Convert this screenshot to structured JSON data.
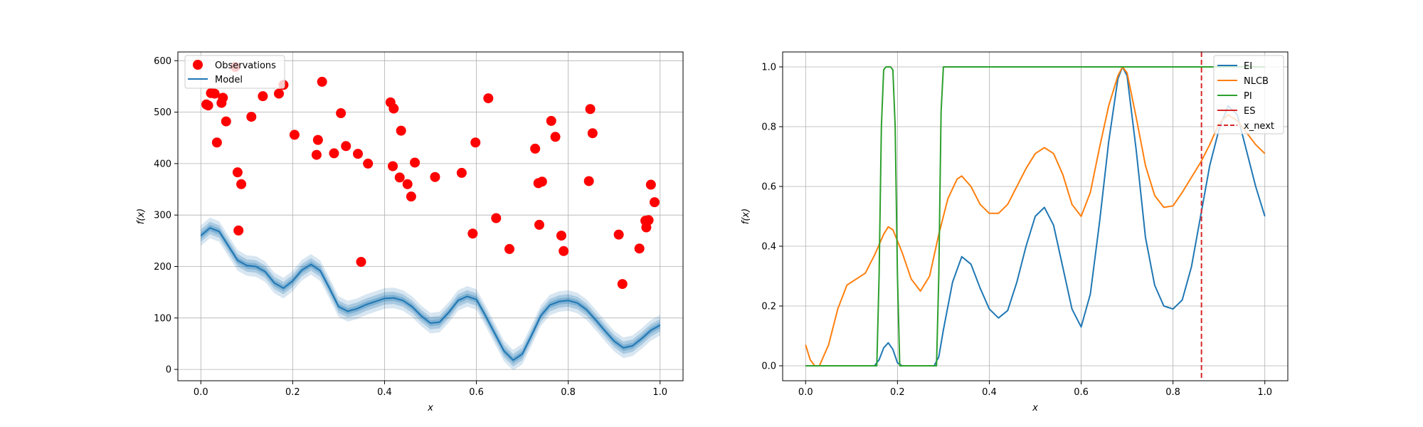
{
  "chart_data": [
    {
      "type": "scatter",
      "title": "",
      "xlabel": "x",
      "ylabel": "f(x)",
      "xlim": [
        -0.05,
        1.05
      ],
      "ylim": [
        -22,
        617
      ],
      "xticks": [
        0.0,
        0.2,
        0.4,
        0.6,
        0.8,
        1.0
      ],
      "xtick_labels": [
        "0.0",
        "0.2",
        "0.4",
        "0.6",
        "0.8",
        "1.0"
      ],
      "yticks": [
        0,
        100,
        200,
        300,
        400,
        500,
        600
      ],
      "ytick_labels": [
        "0",
        "100",
        "200",
        "300",
        "400",
        "500",
        "600"
      ],
      "grid": true,
      "legend": {
        "placement": "upper-left",
        "entries": [
          "Observations",
          "Model"
        ]
      },
      "series": [
        {
          "name": "Observations",
          "kind": "scatter",
          "color": "#ff0000",
          "points": [
            [
              0.012,
              515
            ],
            [
              0.016,
              513
            ],
            [
              0.022,
              537
            ],
            [
              0.03,
              536
            ],
            [
              0.035,
              441
            ],
            [
              0.045,
              518
            ],
            [
              0.048,
              528
            ],
            [
              0.055,
              482
            ],
            [
              0.075,
              588
            ],
            [
              0.08,
              383
            ],
            [
              0.082,
              270
            ],
            [
              0.088,
              360
            ],
            [
              0.11,
              491
            ],
            [
              0.135,
              531
            ],
            [
              0.17,
              536
            ],
            [
              0.18,
              553
            ],
            [
              0.204,
              456
            ],
            [
              0.252,
              417
            ],
            [
              0.255,
              446
            ],
            [
              0.264,
              559
            ],
            [
              0.29,
              420
            ],
            [
              0.305,
              498
            ],
            [
              0.316,
              434
            ],
            [
              0.342,
              419
            ],
            [
              0.349,
              209
            ],
            [
              0.364,
              400
            ],
            [
              0.413,
              519
            ],
            [
              0.418,
              395
            ],
            [
              0.42,
              507
            ],
            [
              0.433,
              373
            ],
            [
              0.436,
              464
            ],
            [
              0.45,
              360
            ],
            [
              0.458,
              336
            ],
            [
              0.466,
              402
            ],
            [
              0.51,
              374
            ],
            [
              0.568,
              382
            ],
            [
              0.592,
              264
            ],
            [
              0.598,
              441
            ],
            [
              0.626,
              527
            ],
            [
              0.643,
              294
            ],
            [
              0.672,
              234
            ],
            [
              0.728,
              429
            ],
            [
              0.735,
              362
            ],
            [
              0.737,
              281
            ],
            [
              0.743,
              365
            ],
            [
              0.763,
              483
            ],
            [
              0.772,
              452
            ],
            [
              0.785,
              260
            ],
            [
              0.79,
              230
            ],
            [
              0.845,
              366
            ],
            [
              0.848,
              506
            ],
            [
              0.853,
              459
            ],
            [
              0.91,
              262
            ],
            [
              0.918,
              166
            ],
            [
              0.955,
              235
            ],
            [
              0.968,
              289
            ],
            [
              0.97,
              276
            ],
            [
              0.975,
              290
            ],
            [
              0.98,
              359
            ],
            [
              0.988,
              325
            ]
          ]
        },
        {
          "name": "Model",
          "kind": "line",
          "color": "#1f77b4",
          "x": [
            0.0,
            0.02,
            0.04,
            0.06,
            0.08,
            0.1,
            0.12,
            0.14,
            0.16,
            0.18,
            0.2,
            0.22,
            0.24,
            0.26,
            0.28,
            0.3,
            0.32,
            0.34,
            0.36,
            0.38,
            0.4,
            0.42,
            0.44,
            0.46,
            0.48,
            0.5,
            0.52,
            0.54,
            0.56,
            0.58,
            0.6,
            0.62,
            0.64,
            0.66,
            0.68,
            0.7,
            0.72,
            0.74,
            0.76,
            0.78,
            0.8,
            0.82,
            0.84,
            0.86,
            0.88,
            0.9,
            0.92,
            0.94,
            0.96,
            0.98,
            1.0
          ],
          "y": [
            260,
            275,
            268,
            240,
            212,
            202,
            200,
            190,
            168,
            158,
            172,
            193,
            204,
            192,
            158,
            122,
            113,
            118,
            126,
            132,
            138,
            139,
            134,
            122,
            104,
            90,
            92,
            111,
            134,
            142,
            136,
            104,
            70,
            36,
            18,
            30,
            66,
            104,
            125,
            132,
            134,
            129,
            116,
            96,
            75,
            55,
            42,
            46,
            60,
            76,
            86
          ],
          "band_halfwidth": 10
        }
      ]
    },
    {
      "type": "line",
      "title": "",
      "xlabel": "x",
      "ylabel": "f(x)",
      "xlim": [
        -0.05,
        1.05
      ],
      "ylim": [
        -0.05,
        1.05
      ],
      "xticks": [
        0.0,
        0.2,
        0.4,
        0.6,
        0.8,
        1.0
      ],
      "xtick_labels": [
        "0.0",
        "0.2",
        "0.4",
        "0.6",
        "0.8",
        "1.0"
      ],
      "yticks": [
        0.0,
        0.2,
        0.4,
        0.6,
        0.8,
        1.0
      ],
      "ytick_labels": [
        "0.0",
        "0.2",
        "0.4",
        "0.6",
        "0.8",
        "1.0"
      ],
      "grid": true,
      "legend": {
        "placement": "upper-right",
        "entries": [
          "EI",
          "NLCB",
          "PI",
          "ES",
          "x_next"
        ]
      },
      "x_next": 0.862,
      "x_next_color": "#d62728",
      "series": [
        {
          "name": "EI",
          "color": "#1f77b4",
          "x": [
            0.0,
            0.15,
            0.16,
            0.17,
            0.18,
            0.19,
            0.2,
            0.21,
            0.28,
            0.29,
            0.3,
            0.32,
            0.34,
            0.36,
            0.38,
            0.4,
            0.42,
            0.44,
            0.46,
            0.48,
            0.5,
            0.52,
            0.54,
            0.56,
            0.58,
            0.6,
            0.62,
            0.64,
            0.66,
            0.68,
            0.69,
            0.7,
            0.72,
            0.74,
            0.76,
            0.78,
            0.8,
            0.82,
            0.84,
            0.86,
            0.88,
            0.9,
            0.92,
            0.94,
            0.96,
            0.98,
            1.0
          ],
          "y": [
            0.0,
            0.0,
            0.02,
            0.06,
            0.077,
            0.055,
            0.01,
            0.0,
            0.0,
            0.03,
            0.12,
            0.28,
            0.365,
            0.34,
            0.26,
            0.19,
            0.16,
            0.185,
            0.28,
            0.4,
            0.5,
            0.53,
            0.47,
            0.33,
            0.19,
            0.13,
            0.24,
            0.48,
            0.75,
            0.96,
            1.0,
            0.97,
            0.72,
            0.43,
            0.27,
            0.2,
            0.19,
            0.22,
            0.33,
            0.5,
            0.67,
            0.79,
            0.87,
            0.84,
            0.72,
            0.6,
            0.5
          ]
        },
        {
          "name": "NLCB",
          "color": "#ff7f0e",
          "x": [
            0.0,
            0.01,
            0.02,
            0.03,
            0.05,
            0.07,
            0.09,
            0.11,
            0.13,
            0.15,
            0.17,
            0.18,
            0.19,
            0.21,
            0.23,
            0.25,
            0.27,
            0.29,
            0.31,
            0.33,
            0.34,
            0.36,
            0.38,
            0.4,
            0.42,
            0.44,
            0.46,
            0.48,
            0.5,
            0.52,
            0.54,
            0.56,
            0.58,
            0.6,
            0.62,
            0.64,
            0.66,
            0.68,
            0.69,
            0.7,
            0.72,
            0.74,
            0.76,
            0.78,
            0.8,
            0.82,
            0.84,
            0.86,
            0.88,
            0.9,
            0.92,
            0.94,
            0.96,
            0.98,
            1.0
          ],
          "y": [
            0.07,
            0.02,
            0.0,
            0.0,
            0.07,
            0.19,
            0.27,
            0.29,
            0.31,
            0.37,
            0.44,
            0.465,
            0.455,
            0.38,
            0.29,
            0.25,
            0.3,
            0.44,
            0.56,
            0.625,
            0.635,
            0.6,
            0.54,
            0.51,
            0.51,
            0.54,
            0.6,
            0.66,
            0.71,
            0.73,
            0.71,
            0.64,
            0.54,
            0.5,
            0.58,
            0.73,
            0.87,
            0.97,
            1.0,
            0.98,
            0.83,
            0.67,
            0.57,
            0.53,
            0.535,
            0.58,
            0.63,
            0.68,
            0.74,
            0.81,
            0.84,
            0.82,
            0.78,
            0.74,
            0.71
          ]
        },
        {
          "name": "PI",
          "color": "#2ca02c",
          "x": [
            0.0,
            0.155,
            0.16,
            0.165,
            0.17,
            0.175,
            0.185,
            0.19,
            0.195,
            0.2,
            0.205,
            0.285,
            0.29,
            0.295,
            0.3,
            1.0
          ],
          "y": [
            0.0,
            0.0,
            0.3,
            0.8,
            0.99,
            1.0,
            1.0,
            0.99,
            0.8,
            0.3,
            0.0,
            0.0,
            0.3,
            0.85,
            1.0,
            1.0
          ]
        },
        {
          "name": "ES",
          "color": "#d62728",
          "x": [],
          "y": []
        }
      ]
    }
  ]
}
